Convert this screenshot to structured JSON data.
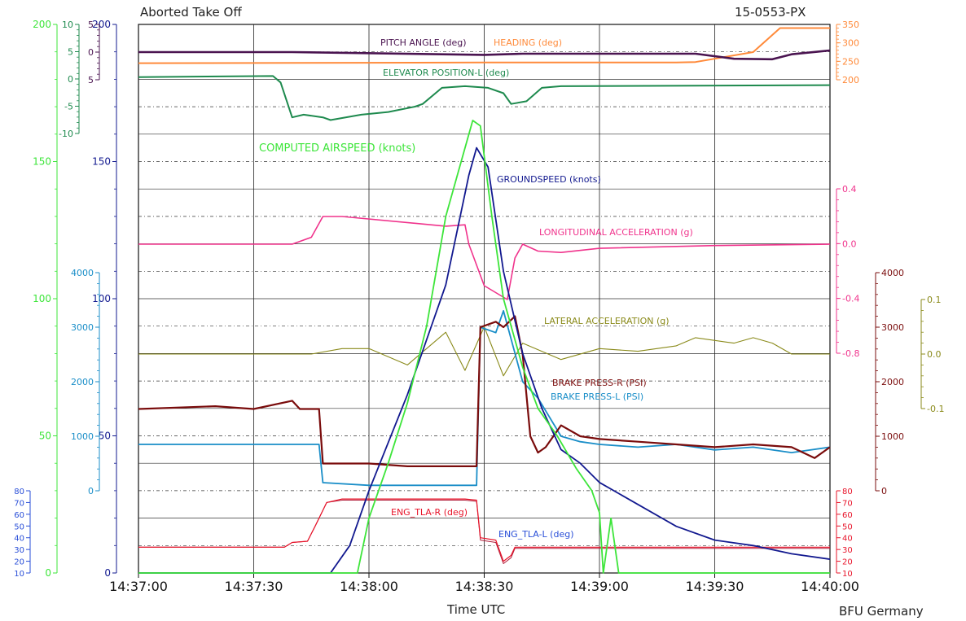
{
  "header": {
    "title": "Aborted Take Off",
    "id": "15-0553-PX",
    "xlabel": "Time UTC",
    "credit": "BFU Germany"
  },
  "chart_data": {
    "type": "line",
    "title": "Aborted Take Off",
    "xlabel": "Time UTC",
    "x_ticks": [
      "14:37:00",
      "14:37:30",
      "14:38:00",
      "14:38:30",
      "14:39:00",
      "14:39:30",
      "14:40:00"
    ],
    "xlim": [
      "14:37:00",
      "14:40:00"
    ],
    "grid": true,
    "colors": {
      "pitch": "#4a1450",
      "heading": "#ff8a3a",
      "elevator": "#1e8a4e",
      "airspeed": "#3de53a",
      "groundspeed": "#12198f",
      "longacc": "#f0338c",
      "latacc": "#8a8a1a",
      "brake_r": "#7a0c0c",
      "brake_l": "#1a8ec8",
      "tla_r": "#e8142a",
      "tla_l": "#b01e3a"
    },
    "axes": {
      "airspeed": {
        "ticks": [
          "0",
          "50",
          "100",
          "150",
          "200"
        ],
        "color": "#3de53a"
      },
      "groundspeed": {
        "ticks": [
          "0",
          "50",
          "100",
          "150",
          "200"
        ],
        "color": "#12198f"
      },
      "pitch": {
        "ticks": [
          "5",
          "0",
          "5"
        ],
        "color": "#4a1450"
      },
      "elevator": {
        "ticks": [
          "10",
          "5",
          "0",
          "-5",
          "-10"
        ],
        "color": "#1e8a4e"
      },
      "heading": {
        "ticks": [
          "350",
          "300",
          "250",
          "200"
        ],
        "color": "#ff8a3a"
      },
      "longacc": {
        "ticks": [
          "0.4",
          "0.0",
          "-0.4",
          "-0.8"
        ],
        "color": "#f0338c"
      },
      "brake_r": {
        "ticks": [
          "4000",
          "3000",
          "2000",
          "1000",
          "0"
        ],
        "color": "#7a0c0c"
      },
      "brake_l": {
        "ticks": [
          "4000",
          "3000",
          "2000",
          "1000",
          "0"
        ],
        "color": "#1a8ec8"
      },
      "latacc": {
        "ticks": [
          "0.1",
          "0.0",
          "-0.1"
        ],
        "color": "#8a8a1a"
      },
      "tla_r": {
        "ticks": [
          "80",
          "70",
          "60",
          "50",
          "40",
          "30",
          "20",
          "10"
        ],
        "color": "#e8142a"
      },
      "tla_l": {
        "ticks": [
          "80",
          "70",
          "60",
          "50",
          "40",
          "30",
          "20",
          "10"
        ],
        "color": "#2a4fd8"
      }
    },
    "series": [
      {
        "key": "pitch",
        "name": "PITCH ANGLE (deg)",
        "unit": "deg",
        "points": [
          [
            "14:37:00",
            0
          ],
          [
            "14:37:40",
            0
          ],
          [
            "14:38:30",
            -0.5
          ],
          [
            "14:38:40",
            -0.3
          ],
          [
            "14:39:25",
            -0.3
          ],
          [
            "14:39:35",
            -1.2
          ],
          [
            "14:39:45",
            -1.3
          ],
          [
            "14:39:50",
            -0.4
          ],
          [
            "14:40:00",
            0.3
          ]
        ]
      },
      {
        "key": "heading",
        "name": "HEADING (deg)",
        "unit": "deg",
        "points": [
          [
            "14:37:00",
            245
          ],
          [
            "14:38:00",
            246
          ],
          [
            "14:38:30",
            247
          ],
          [
            "14:39:20",
            247
          ],
          [
            "14:39:25",
            248
          ],
          [
            "14:39:40",
            275
          ],
          [
            "14:39:47",
            340
          ],
          [
            "14:40:00",
            340
          ]
        ]
      },
      {
        "key": "elevator",
        "name": "ELEVATOR POSITION-L (deg)",
        "unit": "deg",
        "points": [
          [
            "14:37:00",
            0.5
          ],
          [
            "14:37:35",
            0.7
          ],
          [
            "14:37:37",
            -0.5
          ],
          [
            "14:37:40",
            -7
          ],
          [
            "14:37:43",
            -6.5
          ],
          [
            "14:37:48",
            -7
          ],
          [
            "14:37:50",
            -7.5
          ],
          [
            "14:37:58",
            -6.5
          ],
          [
            "14:38:05",
            -6
          ],
          [
            "14:38:12",
            -5
          ],
          [
            "14:38:14",
            -4.5
          ],
          [
            "14:38:19",
            -1.5
          ],
          [
            "14:38:25",
            -1.2
          ],
          [
            "14:38:31",
            -1.5
          ],
          [
            "14:38:35",
            -2.5
          ],
          [
            "14:38:37",
            -4.5
          ],
          [
            "14:38:41",
            -4
          ],
          [
            "14:38:45",
            -1.5
          ],
          [
            "14:38:50",
            -1.2
          ],
          [
            "14:40:00",
            -1
          ]
        ]
      },
      {
        "key": "airspeed",
        "name": "COMPUTED AIRSPEED (knots)",
        "unit": "knots",
        "points": [
          [
            "14:37:00",
            0
          ],
          [
            "14:37:57",
            0
          ],
          [
            "14:38:00",
            20
          ],
          [
            "14:38:05",
            40
          ],
          [
            "14:38:10",
            62
          ],
          [
            "14:38:15",
            90
          ],
          [
            "14:38:20",
            130
          ],
          [
            "14:38:24",
            150
          ],
          [
            "14:38:27",
            165
          ],
          [
            "14:38:29",
            163
          ],
          [
            "14:38:32",
            130
          ],
          [
            "14:38:35",
            100
          ],
          [
            "14:38:40",
            75
          ],
          [
            "14:38:44",
            60
          ],
          [
            "14:38:49",
            50
          ],
          [
            "14:38:54",
            38
          ],
          [
            "14:38:58",
            30
          ],
          [
            "14:39:00",
            22
          ],
          [
            "14:39:01",
            0
          ],
          [
            "14:39:03",
            20
          ],
          [
            "14:39:05",
            0
          ],
          [
            "14:40:00",
            0
          ]
        ]
      },
      {
        "key": "groundspeed",
        "name": "GROUNDSPEED (knots)",
        "unit": "knots",
        "points": [
          [
            "14:37:00",
            0
          ],
          [
            "14:37:50",
            0
          ],
          [
            "14:37:55",
            10
          ],
          [
            "14:38:00",
            30
          ],
          [
            "14:38:10",
            65
          ],
          [
            "14:38:20",
            105
          ],
          [
            "14:38:26",
            145
          ],
          [
            "14:38:28",
            155
          ],
          [
            "14:38:31",
            148
          ],
          [
            "14:38:35",
            110
          ],
          [
            "14:38:40",
            80
          ],
          [
            "14:38:45",
            60
          ],
          [
            "14:38:50",
            45
          ],
          [
            "14:38:55",
            40
          ],
          [
            "14:39:00",
            33
          ],
          [
            "14:39:10",
            25
          ],
          [
            "14:39:20",
            17
          ],
          [
            "14:39:30",
            12
          ],
          [
            "14:39:40",
            10
          ],
          [
            "14:39:50",
            7
          ],
          [
            "14:40:00",
            5
          ]
        ]
      },
      {
        "key": "longacc",
        "name": "LONGITUDINAL ACCELERATION (g)",
        "unit": "g",
        "points": [
          [
            "14:37:00",
            0
          ],
          [
            "14:37:40",
            0
          ],
          [
            "14:37:45",
            0.05
          ],
          [
            "14:37:48",
            0.2
          ],
          [
            "14:37:53",
            0.2
          ],
          [
            "14:38:20",
            0.13
          ],
          [
            "14:38:25",
            0.14
          ],
          [
            "14:38:26",
            0
          ],
          [
            "14:38:30",
            -0.3
          ],
          [
            "14:38:36",
            -0.4
          ],
          [
            "14:38:38",
            -0.1
          ],
          [
            "14:38:40",
            0
          ],
          [
            "14:38:44",
            -0.05
          ],
          [
            "14:38:50",
            -0.06
          ],
          [
            "14:39:00",
            -0.03
          ],
          [
            "14:39:30",
            -0.01
          ],
          [
            "14:40:00",
            0
          ]
        ]
      },
      {
        "key": "latacc",
        "name": "LATERAL ACCELERATION (g)",
        "unit": "g",
        "points": [
          [
            "14:37:00",
            0
          ],
          [
            "14:37:45",
            0
          ],
          [
            "14:37:53",
            0.01
          ],
          [
            "14:38:00",
            0.01
          ],
          [
            "14:38:10",
            -0.02
          ],
          [
            "14:38:20",
            0.04
          ],
          [
            "14:38:25",
            -0.03
          ],
          [
            "14:38:30",
            0.05
          ],
          [
            "14:38:35",
            -0.04
          ],
          [
            "14:38:40",
            0.02
          ],
          [
            "14:38:50",
            -0.01
          ],
          [
            "14:39:00",
            0.01
          ],
          [
            "14:39:10",
            0.005
          ],
          [
            "14:39:20",
            0.015
          ],
          [
            "14:39:25",
            0.03
          ],
          [
            "14:39:35",
            0.02
          ],
          [
            "14:39:40",
            0.03
          ],
          [
            "14:39:45",
            0.02
          ],
          [
            "14:39:50",
            0.0
          ],
          [
            "14:40:00",
            0
          ]
        ]
      },
      {
        "key": "brake_r",
        "name": "BRAKE PRESS-R (PSI)",
        "unit": "PSI",
        "points": [
          [
            "14:37:00",
            1500
          ],
          [
            "14:37:20",
            1550
          ],
          [
            "14:37:30",
            1500
          ],
          [
            "14:37:40",
            1650
          ],
          [
            "14:37:42",
            1500
          ],
          [
            "14:37:47",
            1500
          ],
          [
            "14:37:48",
            500
          ],
          [
            "14:38:00",
            500
          ],
          [
            "14:38:10",
            450
          ],
          [
            "14:38:20",
            450
          ],
          [
            "14:38:28",
            450
          ],
          [
            "14:38:29",
            3000
          ],
          [
            "14:38:33",
            3100
          ],
          [
            "14:38:35",
            3000
          ],
          [
            "14:38:38",
            3200
          ],
          [
            "14:38:40",
            2500
          ],
          [
            "14:38:42",
            1000
          ],
          [
            "14:38:44",
            700
          ],
          [
            "14:38:46",
            800
          ],
          [
            "14:38:50",
            1200
          ],
          [
            "14:38:55",
            1000
          ],
          [
            "14:39:00",
            950
          ],
          [
            "14:39:10",
            900
          ],
          [
            "14:39:20",
            850
          ],
          [
            "14:39:30",
            800
          ],
          [
            "14:39:40",
            850
          ],
          [
            "14:39:50",
            800
          ],
          [
            "14:39:56",
            600
          ],
          [
            "14:40:00",
            800
          ]
        ]
      },
      {
        "key": "brake_l",
        "name": "BRAKE PRESS-L (PSI)",
        "unit": "PSI",
        "points": [
          [
            "14:37:00",
            850
          ],
          [
            "14:37:20",
            850
          ],
          [
            "14:37:40",
            850
          ],
          [
            "14:37:47",
            850
          ],
          [
            "14:37:48",
            150
          ],
          [
            "14:38:00",
            100
          ],
          [
            "14:38:20",
            100
          ],
          [
            "14:38:28",
            100
          ],
          [
            "14:38:29",
            3000
          ],
          [
            "14:38:33",
            2900
          ],
          [
            "14:38:35",
            3300
          ],
          [
            "14:38:40",
            2000
          ],
          [
            "14:38:44",
            1700
          ],
          [
            "14:38:50",
            1000
          ],
          [
            "14:38:55",
            900
          ],
          [
            "14:39:00",
            850
          ],
          [
            "14:39:10",
            800
          ],
          [
            "14:39:20",
            850
          ],
          [
            "14:39:30",
            750
          ],
          [
            "14:39:40",
            800
          ],
          [
            "14:39:50",
            700
          ],
          [
            "14:40:00",
            800
          ]
        ]
      },
      {
        "key": "tla_r",
        "name": "ENG_TLA-R (deg)",
        "unit": "deg",
        "points": [
          [
            "14:37:00",
            32
          ],
          [
            "14:37:38",
            32
          ],
          [
            "14:37:40",
            36
          ],
          [
            "14:37:44",
            37
          ],
          [
            "14:37:46",
            50
          ],
          [
            "14:37:49",
            70
          ],
          [
            "14:37:53",
            73
          ],
          [
            "14:38:25",
            73
          ],
          [
            "14:38:28",
            72
          ],
          [
            "14:38:29",
            40
          ],
          [
            "14:38:33",
            38
          ],
          [
            "14:38:35",
            20
          ],
          [
            "14:38:37",
            25
          ],
          [
            "14:38:38",
            32
          ],
          [
            "14:40:00",
            32
          ]
        ]
      },
      {
        "key": "tla_l",
        "name": "ENG_TLA-L (deg)",
        "unit": "deg",
        "points": [
          [
            "14:37:00",
            32
          ],
          [
            "14:37:38",
            32
          ],
          [
            "14:37:40",
            36
          ],
          [
            "14:37:44",
            37
          ],
          [
            "14:37:46",
            50
          ],
          [
            "14:37:49",
            70
          ],
          [
            "14:37:53",
            72
          ],
          [
            "14:38:25",
            72
          ],
          [
            "14:38:28",
            71
          ],
          [
            "14:38:29",
            38
          ],
          [
            "14:38:33",
            36
          ],
          [
            "14:38:35",
            18
          ],
          [
            "14:38:37",
            23
          ],
          [
            "14:38:38",
            31
          ],
          [
            "14:40:00",
            31
          ]
        ]
      }
    ]
  }
}
